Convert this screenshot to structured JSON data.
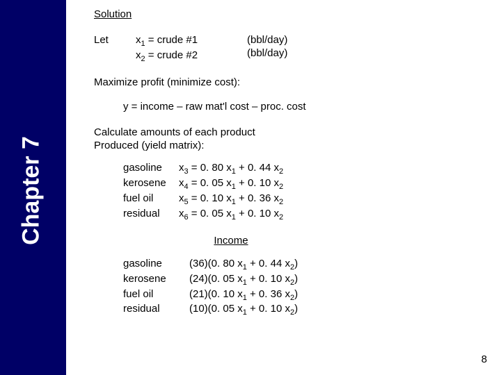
{
  "chapter": "Chapter 7",
  "solution_title": "Solution",
  "let_label": "Let",
  "let_defs": {
    "line1_var": "x",
    "line1_sub": "1",
    "line1_text": " = crude #1",
    "line2_var": "x",
    "line2_sub": "2",
    "line2_text": " = crude #2",
    "unit": "(bbl/day)"
  },
  "maximize": "Maximize profit (minimize cost):",
  "y_eq": "y = income – raw mat'l cost – proc. cost",
  "calc_text1": "Calculate amounts of each product",
  "calc_text2": "Produced (yield matrix):",
  "yield": [
    {
      "name": "gasoline",
      "out_sub": "3",
      "a": "0. 80",
      "b": "0. 44"
    },
    {
      "name": "kerosene",
      "out_sub": "4",
      "a": "0. 05",
      "b": "0. 10"
    },
    {
      "name": "fuel oil",
      "out_sub": "5",
      "a": "0. 10",
      "b": "0. 36"
    },
    {
      "name": "residual",
      "out_sub": "6",
      "a": "0. 05",
      "b": "0. 10"
    }
  ],
  "income_title": "Income",
  "income": [
    {
      "name": "gasoline",
      "price": "36",
      "a": "0. 80",
      "b": "0. 44"
    },
    {
      "name": "kerosene",
      "price": "24",
      "a": "0. 05",
      "b": "0. 10"
    },
    {
      "name": "fuel oil",
      "price": "21",
      "a": "0. 10",
      "b": "0. 36"
    },
    {
      "name": "residual",
      "price": "10",
      "a": "0. 05",
      "b": "0. 10"
    }
  ],
  "page_number": "8"
}
